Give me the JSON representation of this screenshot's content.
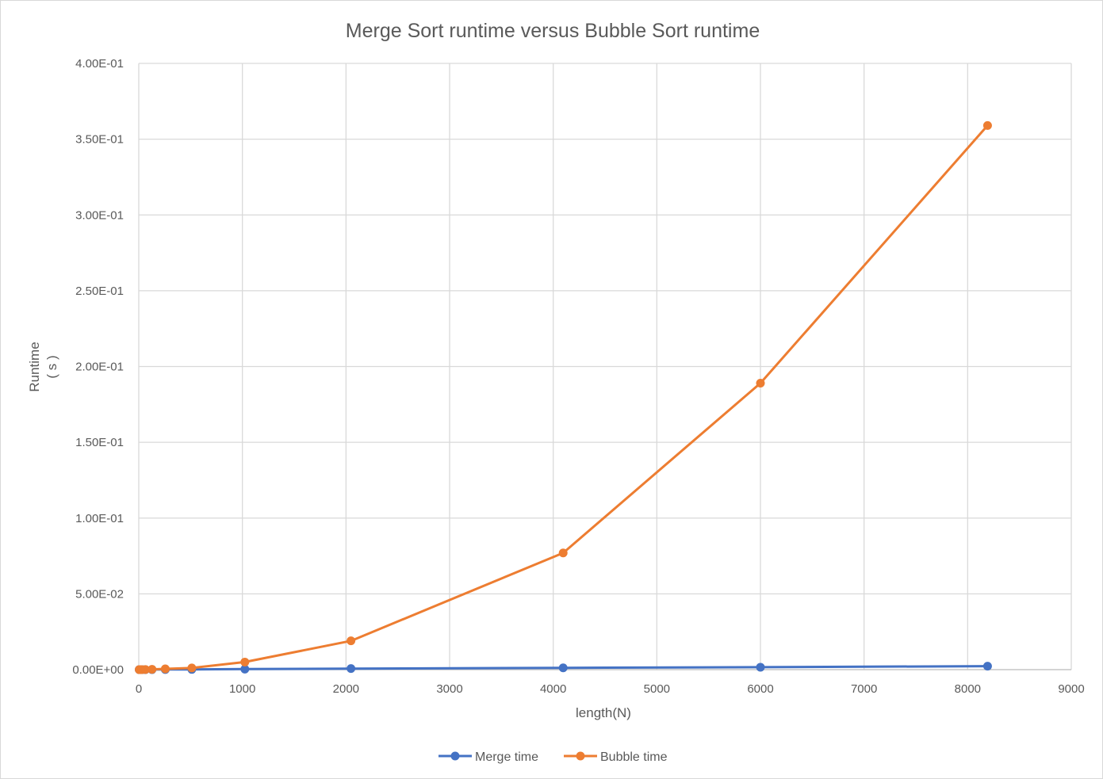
{
  "chart_data": {
    "type": "line",
    "title": "Merge Sort runtime versus Bubble Sort runtime",
    "xlabel": "length(N)",
    "ylabel_lines": [
      "Runtime",
      "( s )"
    ],
    "xlim": [
      0,
      9000
    ],
    "ylim": [
      0,
      0.4
    ],
    "x_ticks": [
      0,
      1000,
      2000,
      3000,
      4000,
      5000,
      6000,
      7000,
      8000,
      9000
    ],
    "x_tick_labels": [
      "0",
      "1000",
      "2000",
      "3000",
      "4000",
      "5000",
      "6000",
      "7000",
      "8000",
      "9000"
    ],
    "y_ticks": [
      0,
      0.05,
      0.1,
      0.15,
      0.2,
      0.25,
      0.3,
      0.35,
      0.4
    ],
    "y_tick_labels": [
      "0.00E+00",
      "5.00E-02",
      "1.00E-01",
      "1.50E-01",
      "2.00E-01",
      "2.50E-01",
      "3.00E-01",
      "3.50E-01",
      "4.00E-01"
    ],
    "grid": true,
    "legend_position": "bottom",
    "x": [
      4,
      8,
      16,
      32,
      64,
      128,
      256,
      512,
      1024,
      2048,
      4096,
      6000,
      8192
    ],
    "series": [
      {
        "name": "Merge time",
        "color": "#4472c4",
        "values": [
          1e-06,
          2e-06,
          5e-06,
          1e-05,
          2e-05,
          4e-05,
          8e-05,
          0.00017,
          0.00035,
          0.0007,
          0.0012,
          0.0016,
          0.0023
        ]
      },
      {
        "name": "Bubble time",
        "color": "#ed7d31",
        "values": [
          1e-06,
          2e-06,
          5e-06,
          2e-05,
          6e-05,
          0.00022,
          0.0005,
          0.0011,
          0.005,
          0.019,
          0.077,
          0.189,
          0.359
        ]
      }
    ]
  }
}
